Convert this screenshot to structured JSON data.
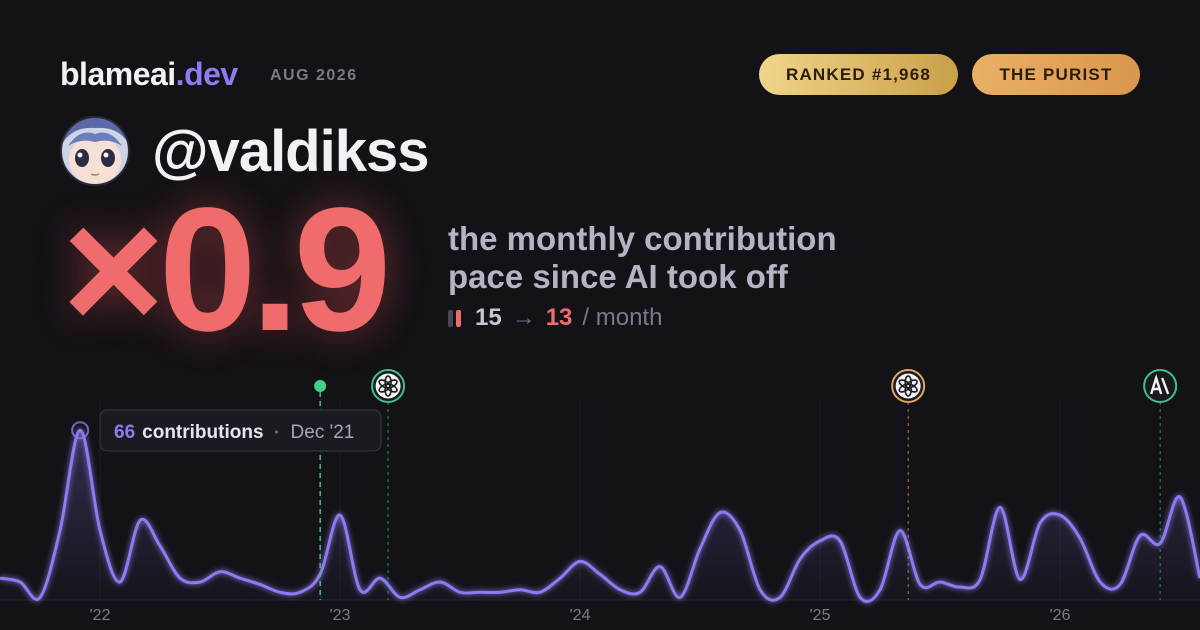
{
  "header": {
    "brand": "blameai",
    "tld": ".dev",
    "date": "AUG 2026",
    "badges": [
      "RANKED #1,968",
      "THE PURIST"
    ]
  },
  "profile": {
    "handle": "@valdikss"
  },
  "headline": {
    "multiplier": "×0.9",
    "description": [
      "the monthly contribution",
      "pace since AI took off"
    ]
  },
  "pace": {
    "before": 15,
    "arrow": "→",
    "after": 13,
    "unit": "/ month"
  },
  "chart_data": {
    "type": "line",
    "x": [
      2021.583,
      2021.667,
      2021.75,
      2021.833,
      2021.917,
      2022,
      2022.083,
      2022.167,
      2022.25,
      2022.333,
      2022.417,
      2022.5,
      2022.583,
      2022.667,
      2022.75,
      2022.833,
      2022.917,
      2023,
      2023.083,
      2023.167,
      2023.25,
      2023.333,
      2023.417,
      2023.5,
      2023.583,
      2023.667,
      2023.75,
      2023.833,
      2023.917,
      2024,
      2024.083,
      2024.167,
      2024.25,
      2024.333,
      2024.417,
      2024.5,
      2024.583,
      2024.667,
      2024.75,
      2024.833,
      2024.917,
      2025,
      2025.083,
      2025.167,
      2025.25,
      2025.333,
      2025.417,
      2025.5,
      2025.583,
      2025.667,
      2025.75,
      2025.833,
      2025.917,
      2026,
      2026.083,
      2026.167,
      2026.25,
      2026.333,
      2026.417,
      2026.5,
      2026.583
    ],
    "series": [
      {
        "color": "#8b7cf0",
        "values": [
          8.5,
          7,
          1,
          27,
          66,
          27,
          7,
          31,
          21,
          8.5,
          7,
          11,
          8.5,
          6,
          3,
          3,
          10,
          33,
          4,
          8.5,
          1,
          4,
          7,
          3,
          3,
          3,
          4,
          3,
          8.5,
          15,
          10,
          4,
          3,
          13,
          1,
          20,
          34,
          27,
          4,
          1,
          16,
          23,
          23,
          1,
          4,
          27,
          6,
          7,
          5,
          8,
          36,
          8,
          30,
          33,
          24,
          7,
          6,
          25,
          22,
          40,
          8.5
        ]
      }
    ],
    "xlim": [
      2021.583,
      2026.583
    ],
    "ylim": [
      0,
      70
    ],
    "xticks": [
      {
        "value": 2022,
        "label": "'22"
      },
      {
        "value": 2023,
        "label": "'23"
      },
      {
        "value": 2024,
        "label": "'24"
      },
      {
        "value": 2025,
        "label": "'25"
      },
      {
        "value": 2026,
        "label": "'26"
      }
    ],
    "grid": true,
    "tooltip": {
      "index": 4,
      "unit": "contributions",
      "date": "Dec '21"
    },
    "events": [
      {
        "x": 2022.917,
        "kind": "dot"
      },
      {
        "x": 2023.2,
        "kind": "openai"
      },
      {
        "x": 2025.367,
        "kind": "openai-gold"
      },
      {
        "x": 2026.417,
        "kind": "anthropic"
      }
    ]
  }
}
